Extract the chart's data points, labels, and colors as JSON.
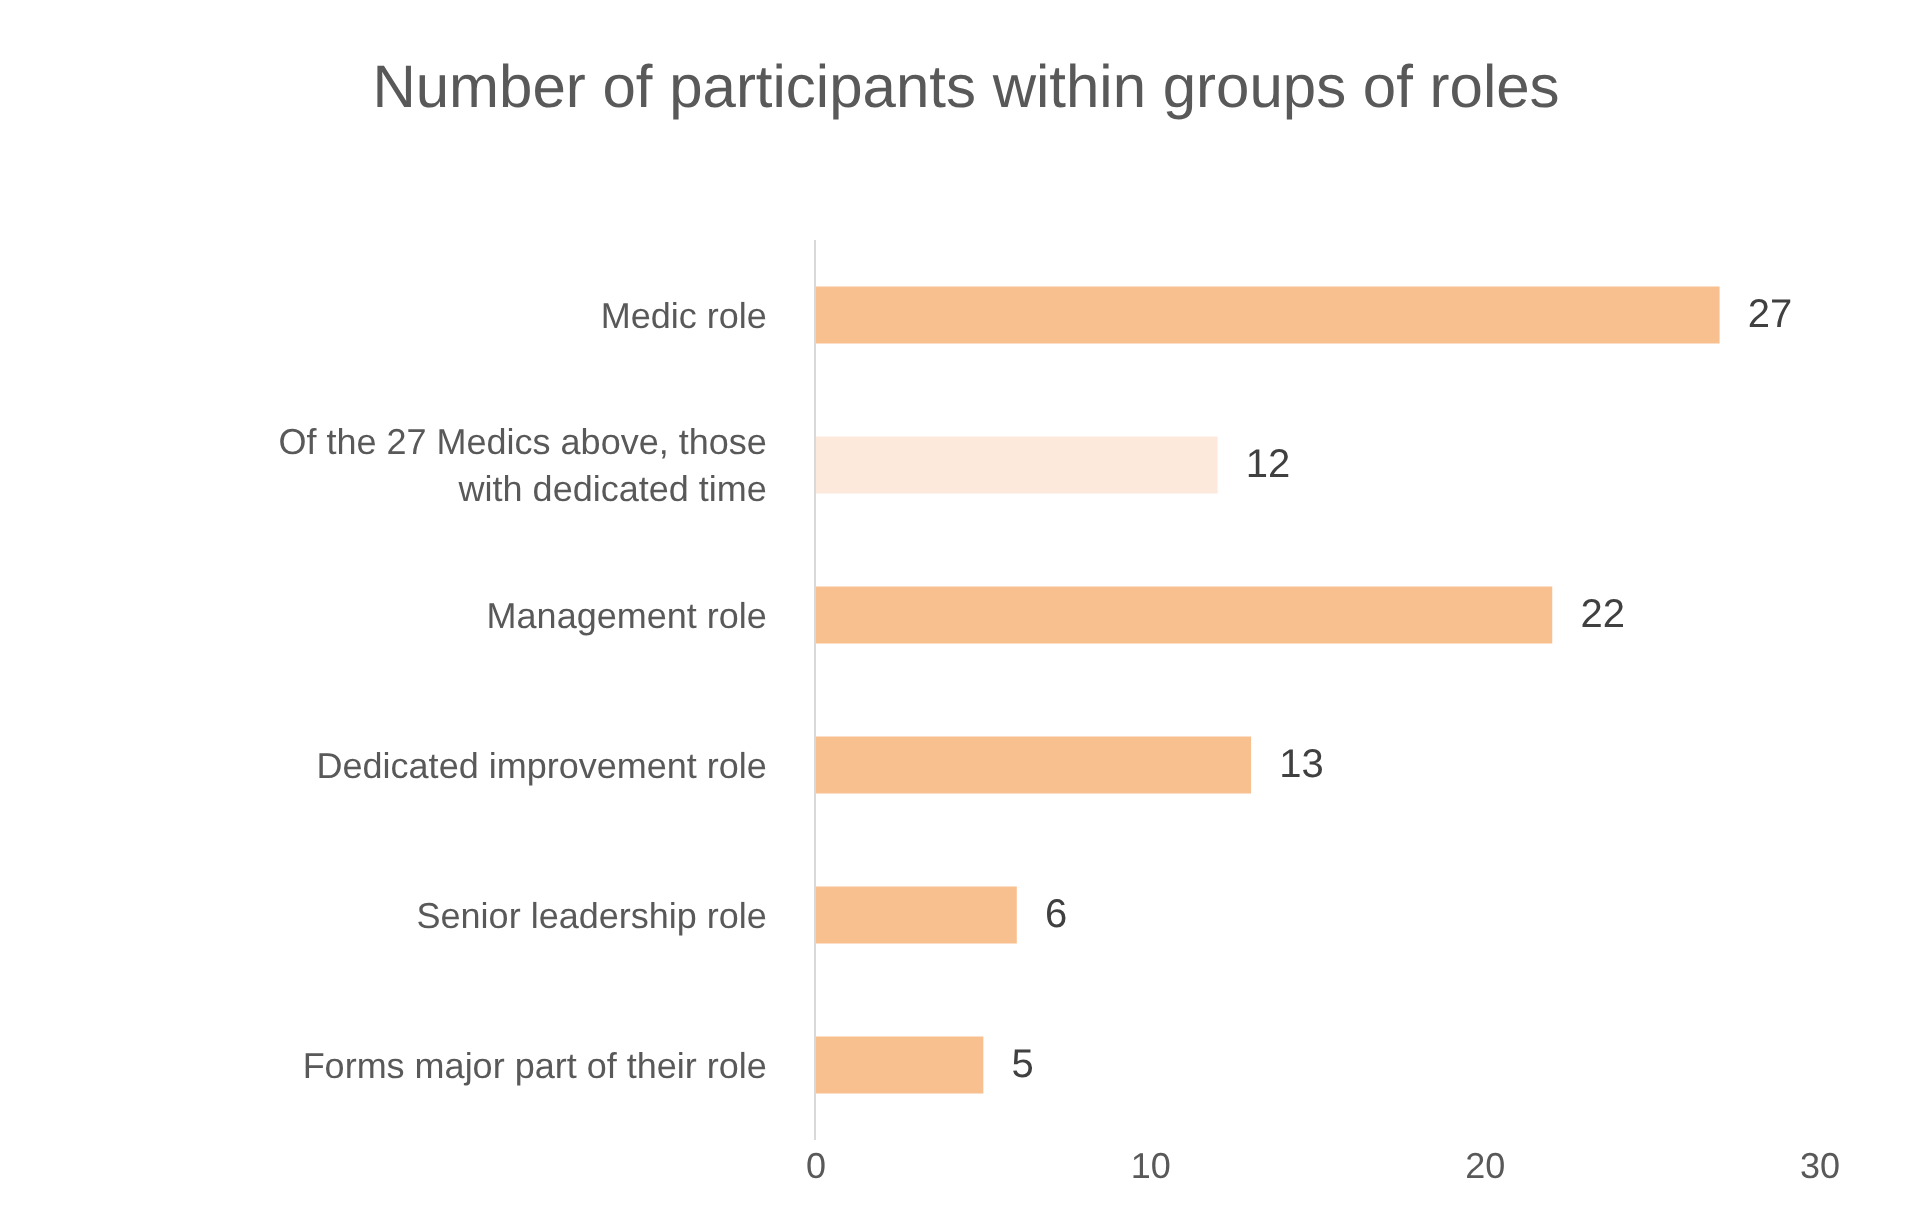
{
  "chart_data": {
    "type": "bar",
    "orientation": "horizontal",
    "title": "Number of participants within groups of roles",
    "categories": [
      "Medic role",
      "Of the 27 Medics above, those with dedicated time",
      "Management role",
      "Dedicated improvement role",
      "Senior leadership role",
      "Forms major part of their role"
    ],
    "values": [
      27,
      12,
      22,
      13,
      6,
      5
    ],
    "colors": [
      "#f9c08f",
      "#fde9dc",
      "#f9c08f",
      "#f9c08f",
      "#f9c08f",
      "#f9c08f"
    ],
    "xlim": [
      0,
      30
    ],
    "xticks": [
      0,
      10,
      20,
      30
    ],
    "data_labels": true
  }
}
